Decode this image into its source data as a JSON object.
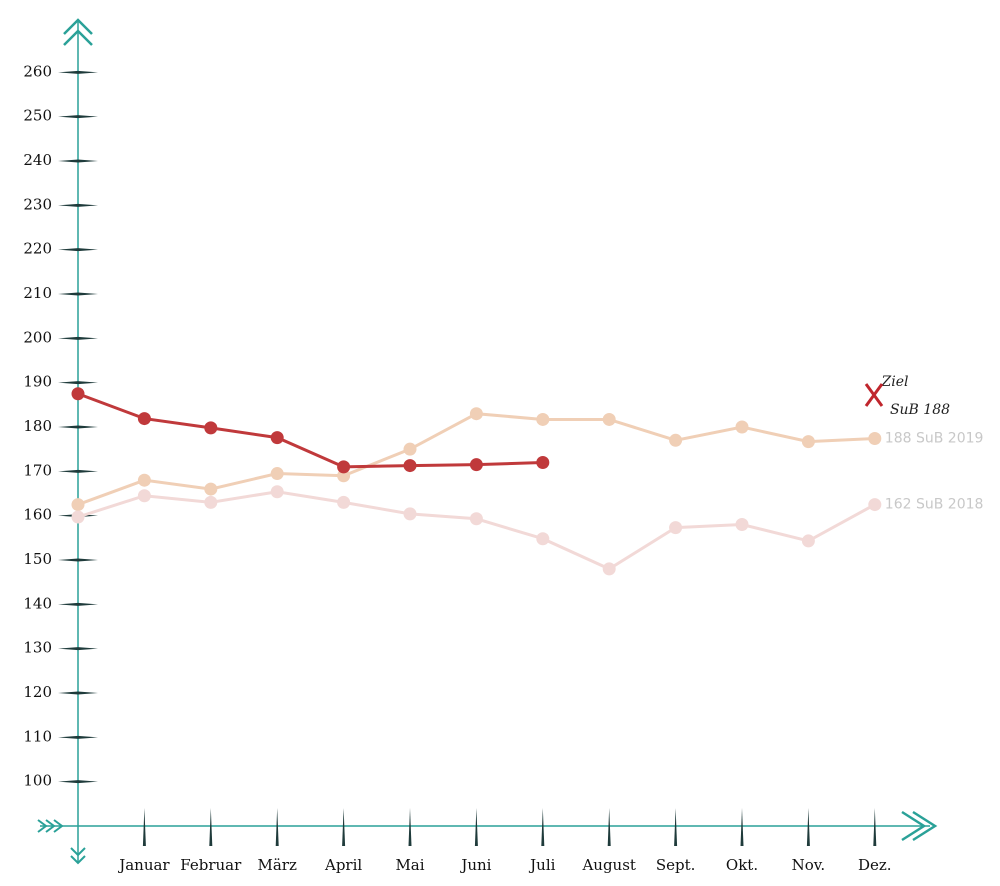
{
  "chart_data": {
    "type": "line",
    "categories": [
      null,
      "Januar",
      "Februar",
      "März",
      "April",
      "Mai",
      "Juni",
      "Juli",
      "August",
      "Sept.",
      "Okt.",
      "Nov.",
      "Dez."
    ],
    "series": [
      {
        "name": "188 SuB 2019",
        "color": "#f0cfb6",
        "values": [
          162.5,
          168,
          166,
          169.5,
          169,
          175,
          183,
          181.7,
          181.7,
          177,
          180,
          176.7,
          177.4
        ]
      },
      {
        "name": "162 SuB 2018",
        "color": "#f2d9d7",
        "values": [
          159.7,
          164.5,
          163,
          165.4,
          163,
          160.4,
          159.3,
          154.8,
          148,
          157.3,
          158,
          154.3,
          162.5
        ]
      },
      {
        "color": "#c0393b",
        "values": [
          187.5,
          181.9,
          179.8,
          177.6,
          171,
          171.3,
          171.5,
          172,
          null,
          null,
          null,
          null,
          null
        ]
      }
    ],
    "annotations": [
      "Ziel",
      "SuB 188"
    ],
    "ylim": [
      90,
      270
    ],
    "yticks": [
      100,
      110,
      120,
      130,
      140,
      150,
      160,
      170,
      180,
      190,
      200,
      210,
      220,
      230,
      240,
      250,
      260
    ]
  }
}
